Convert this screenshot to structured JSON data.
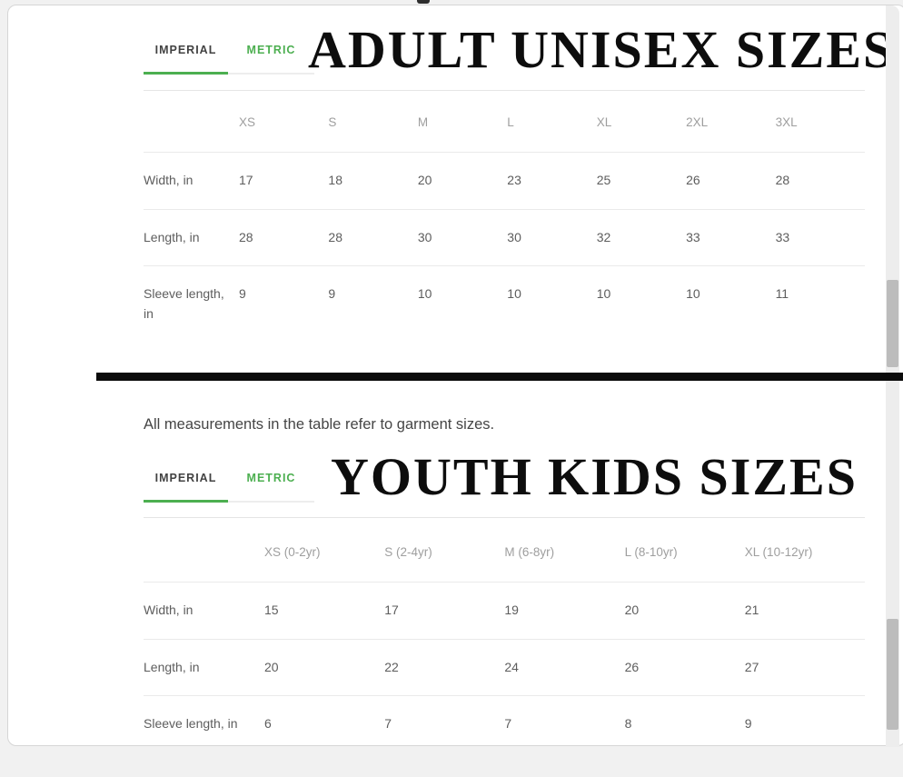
{
  "note": "All measurements in the table refer to garment sizes.",
  "tabs": {
    "imperial": "IMPERIAL",
    "metric": "METRIC"
  },
  "adult": {
    "title": "ADULT UNISEX SIZES",
    "columns": [
      "XS",
      "S",
      "M",
      "L",
      "XL",
      "2XL",
      "3XL"
    ],
    "rows": [
      {
        "label": "Width, in",
        "values": [
          "17",
          "18",
          "20",
          "23",
          "25",
          "26",
          "28"
        ]
      },
      {
        "label": "Length, in",
        "values": [
          "28",
          "28",
          "30",
          "30",
          "32",
          "33",
          "33"
        ]
      },
      {
        "label": "Sleeve length, in",
        "values": [
          "9",
          "9",
          "10",
          "10",
          "10",
          "10",
          "11"
        ]
      }
    ]
  },
  "youth": {
    "title": "YOUTH KIDS SIZES",
    "columns": [
      "XS (0-2yr)",
      "S (2-4yr)",
      "M (6-8yr)",
      "L (8-10yr)",
      "XL (10-12yr)"
    ],
    "rows": [
      {
        "label": "Width, in",
        "values": [
          "15",
          "17",
          "19",
          "20",
          "21"
        ]
      },
      {
        "label": "Length, in",
        "values": [
          "20",
          "22",
          "24",
          "26",
          "27"
        ]
      },
      {
        "label": "Sleeve length, in",
        "values": [
          "6",
          "7",
          "7",
          "8",
          "9"
        ]
      }
    ]
  },
  "colors": {
    "accent_green": "#4caf50",
    "divider_black": "#0b0b0b"
  }
}
